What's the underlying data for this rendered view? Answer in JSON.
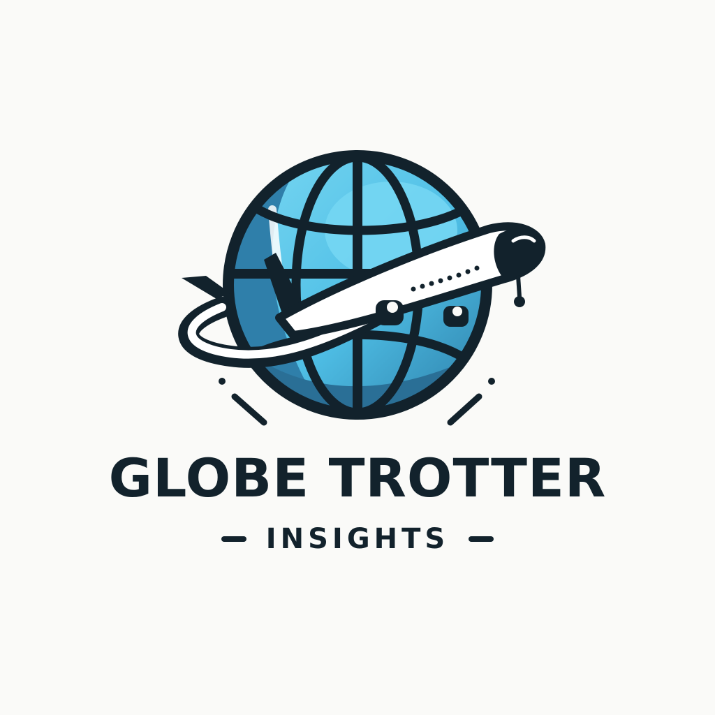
{
  "logo": {
    "brand_name": "GLOBE TROTTER",
    "tagline": "INSIGHTS",
    "icons": [
      "globe-icon",
      "airplane-icon"
    ],
    "colors": {
      "background": "#fafaf8",
      "outline": "#12222c",
      "globe_light": "#62d1f0",
      "globe_dark": "#2c7ea8",
      "plane_body": "#ffffff",
      "text": "#12222c"
    }
  }
}
